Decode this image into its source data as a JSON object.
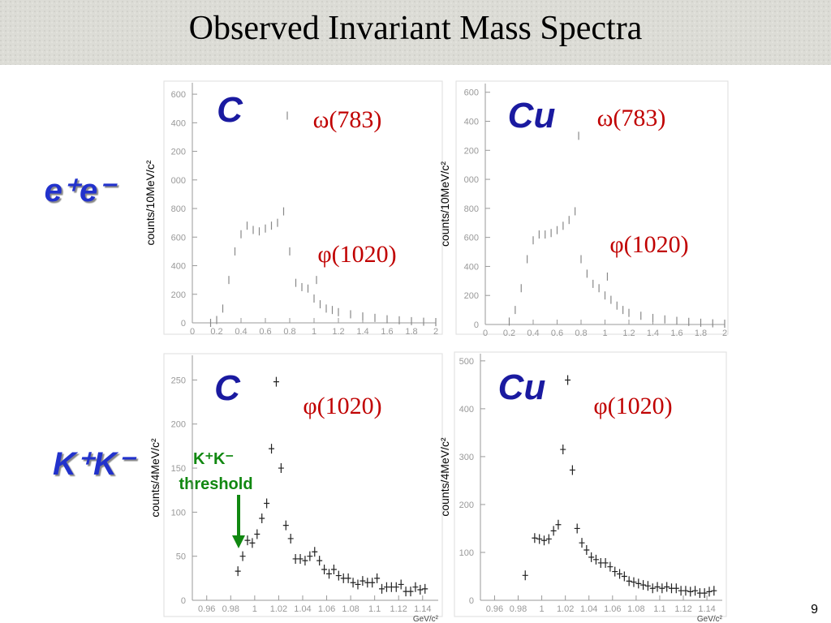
{
  "title": "Observed Invariant Mass Spectra",
  "row_labels": [
    "e⁺e⁻",
    "K⁺K⁻"
  ],
  "threshold_label": [
    "K⁺K⁻",
    "threshold"
  ],
  "page_number": "9",
  "chart_data": [
    {
      "type": "scatter",
      "title": "C",
      "ylabel": "counts/10MeV/c²",
      "annotations": [
        "ω(783)",
        "φ(1020)"
      ],
      "x": [
        0.15,
        0.2,
        0.25,
        0.3,
        0.35,
        0.4,
        0.45,
        0.5,
        0.55,
        0.6,
        0.65,
        0.7,
        0.75,
        0.78,
        0.8,
        0.85,
        0.9,
        0.95,
        1.0,
        1.02,
        1.05,
        1.1,
        1.15,
        1.2,
        1.3,
        1.4,
        1.5,
        1.6,
        1.7,
        1.8,
        1.9,
        2.0
      ],
      "values": [
        0,
        20,
        100,
        300,
        500,
        620,
        680,
        650,
        640,
        660,
        680,
        700,
        780,
        1450,
        500,
        280,
        250,
        240,
        170,
        300,
        130,
        100,
        90,
        75,
        60,
        45,
        35,
        25,
        18,
        12,
        8,
        5
      ],
      "color": "#888888",
      "xlim": [
        0,
        2
      ],
      "ylim": [
        0,
        1680
      ],
      "xticks": [
        0,
        0.2,
        0.4,
        0.6,
        0.8,
        1,
        1.2,
        1.4,
        1.6,
        1.8,
        2
      ],
      "yticks": [
        0,
        200,
        400,
        600,
        800,
        {
          "value": 1000,
          "label": "000"
        },
        {
          "value": 1200,
          "label": "200"
        },
        {
          "value": 1400,
          "label": "400"
        },
        {
          "value": 1600,
          "label": "600"
        }
      ]
    },
    {
      "type": "scatter",
      "title": "Cu",
      "ylabel": "counts/10MeV/c²",
      "annotations": [
        "ω(783)",
        "φ(1020)"
      ],
      "x": [
        0.2,
        0.25,
        0.3,
        0.35,
        0.4,
        0.45,
        0.5,
        0.55,
        0.6,
        0.65,
        0.7,
        0.75,
        0.78,
        0.8,
        0.85,
        0.9,
        0.95,
        1.0,
        1.02,
        1.05,
        1.1,
        1.15,
        1.2,
        1.3,
        1.4,
        1.5,
        1.6,
        1.7,
        1.8,
        1.9,
        2.0
      ],
      "values": [
        20,
        100,
        250,
        450,
        580,
        620,
        620,
        630,
        650,
        680,
        720,
        780,
        1300,
        450,
        350,
        280,
        250,
        200,
        330,
        170,
        130,
        100,
        80,
        60,
        45,
        35,
        25,
        18,
        12,
        8,
        5
      ],
      "color": "#888888",
      "xlim": [
        0,
        2
      ],
      "ylim": [
        0,
        1660
      ],
      "xticks": [
        0,
        0.2,
        0.4,
        0.6,
        0.8,
        1,
        1.2,
        1.4,
        1.6,
        1.8,
        2
      ],
      "yticks": [
        0,
        200,
        400,
        600,
        800,
        {
          "value": 1000,
          "label": "000"
        },
        {
          "value": 1200,
          "label": "200"
        },
        {
          "value": 1400,
          "label": "400"
        },
        {
          "value": 1600,
          "label": "600"
        }
      ]
    },
    {
      "type": "scatter",
      "title": "C",
      "ylabel": "counts/4MeV/c²",
      "xlabel": "GeV/c²",
      "annotations": [
        "φ(1020)"
      ],
      "x": [
        0.986,
        0.99,
        0.994,
        0.998,
        1.002,
        1.006,
        1.01,
        1.014,
        1.018,
        1.022,
        1.026,
        1.03,
        1.034,
        1.038,
        1.042,
        1.046,
        1.05,
        1.054,
        1.058,
        1.062,
        1.066,
        1.07,
        1.074,
        1.078,
        1.082,
        1.086,
        1.09,
        1.094,
        1.098,
        1.102,
        1.106,
        1.11,
        1.114,
        1.118,
        1.122,
        1.126,
        1.13,
        1.134,
        1.138,
        1.142
      ],
      "values": [
        33,
        50,
        68,
        65,
        75,
        93,
        110,
        172,
        248,
        150,
        85,
        70,
        47,
        47,
        45,
        50,
        55,
        45,
        35,
        30,
        35,
        28,
        25,
        25,
        20,
        18,
        22,
        20,
        20,
        25,
        13,
        15,
        15,
        15,
        18,
        10,
        10,
        15,
        12,
        13
      ],
      "color": "#222222",
      "xlim": [
        0.948,
        1.153
      ],
      "ylim": [
        0,
        278
      ],
      "xticks": [
        0.96,
        0.98,
        1,
        1.02,
        1.04,
        1.06,
        1.08,
        1.1,
        1.12,
        1.14
      ],
      "yticks": [
        0,
        50,
        100,
        150,
        200,
        250
      ]
    },
    {
      "type": "scatter",
      "title": "Cu",
      "ylabel": "counts/4MeV/c²",
      "xlabel": "GeV/c²",
      "annotations": [
        "φ(1020)"
      ],
      "x": [
        0.986,
        0.994,
        0.998,
        1.002,
        1.006,
        1.01,
        1.014,
        1.018,
        1.022,
        1.026,
        1.03,
        1.034,
        1.038,
        1.042,
        1.046,
        1.05,
        1.054,
        1.058,
        1.062,
        1.066,
        1.07,
        1.074,
        1.078,
        1.082,
        1.086,
        1.09,
        1.094,
        1.098,
        1.102,
        1.106,
        1.11,
        1.114,
        1.118,
        1.122,
        1.126,
        1.13,
        1.134,
        1.138,
        1.142,
        1.146
      ],
      "values": [
        52,
        130,
        128,
        125,
        128,
        145,
        158,
        315,
        460,
        272,
        150,
        120,
        105,
        90,
        85,
        78,
        78,
        70,
        60,
        55,
        50,
        40,
        38,
        35,
        32,
        30,
        25,
        28,
        25,
        28,
        25,
        25,
        20,
        20,
        18,
        20,
        15,
        15,
        18,
        20
      ],
      "color": "#222222",
      "xlim": [
        0.948,
        1.153
      ],
      "ylim": [
        0,
        515
      ],
      "xticks": [
        0.96,
        0.98,
        1,
        1.02,
        1.04,
        1.06,
        1.08,
        1.1,
        1.12,
        1.14
      ],
      "yticks": [
        0,
        100,
        200,
        300,
        400,
        500
      ]
    }
  ]
}
